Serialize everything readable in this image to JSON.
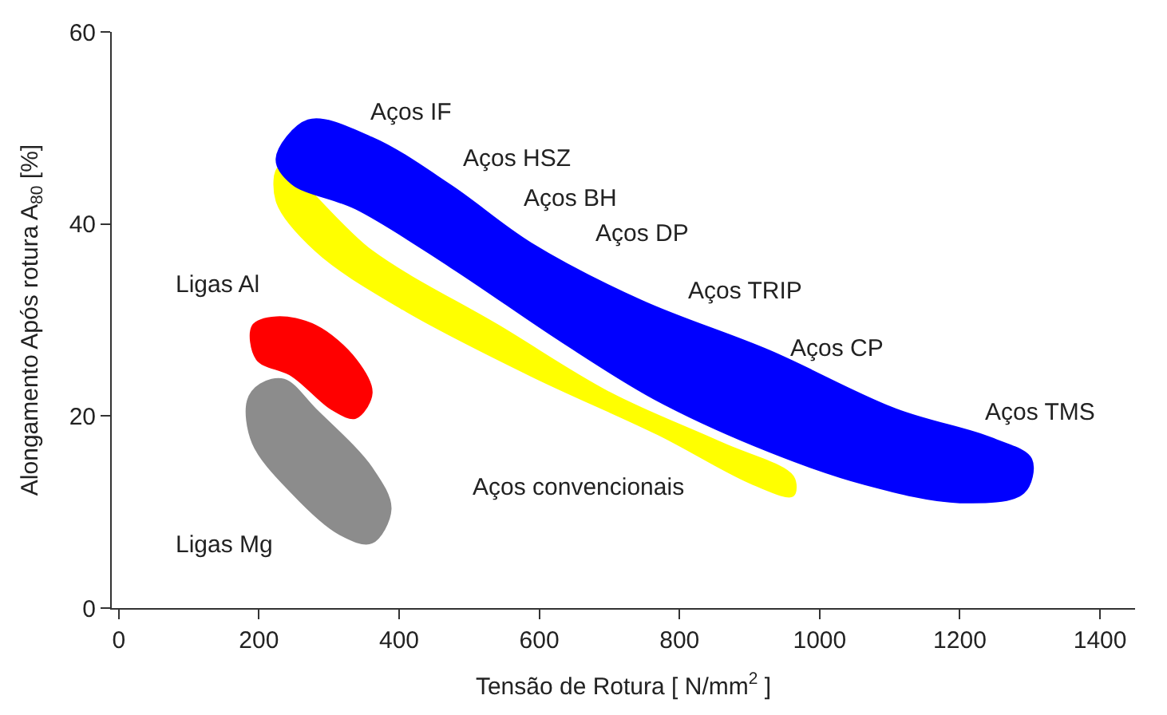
{
  "chart_data": {
    "type": "area",
    "xlabel": "Tensão de Rotura [ N/mm$^{2}$ ]",
    "ylabel": "Alongamento Após rotura A$_{80}$ [%]",
    "xlim": [
      -10,
      1450
    ],
    "ylim": [
      0,
      60
    ],
    "xticks": [
      0,
      200,
      400,
      600,
      800,
      1000,
      1200,
      1400
    ],
    "yticks": [
      0,
      20,
      40,
      60
    ],
    "series": [
      {
        "color": "#ffff00",
        "x": [
          229,
          225,
          281,
          406,
          588,
          769,
          905,
          962,
          962,
          860,
          701,
          542,
          361,
          229
        ],
        "values": [
          45.9,
          42.4,
          37.2,
          31.1,
          24.2,
          18.1,
          12.9,
          11.7,
          13.7,
          17.2,
          22.4,
          29.4,
          37.2,
          45.9
        ]
      },
      {
        "color": "#0000ff",
        "x": [
          225,
          270,
          361,
          474,
          588,
          746,
          928,
          1109,
          1245,
          1302,
          1291,
          1200,
          1064,
          928,
          769,
          633,
          474,
          338,
          247,
          225
        ],
        "values": [
          46.8,
          50.8,
          49,
          44,
          38,
          32,
          26.8,
          20.7,
          17.7,
          15.5,
          12,
          11,
          12.9,
          16.3,
          21.6,
          27.7,
          35.5,
          41.6,
          44.2,
          46.8
        ]
      },
      {
        "color": "#ff0000",
        "x": [
          191,
          225,
          281,
          338,
          361,
          338,
          304,
          247,
          197,
          191
        ],
        "values": [
          29.4,
          30.3,
          29.4,
          25.9,
          22.4,
          19.8,
          20.7,
          24.2,
          25.9,
          29.4
        ]
      },
      {
        "color": "#8c8c8c",
        "x": [
          202,
          236,
          281,
          361,
          388,
          361,
          315,
          247,
          191,
          184,
          202
        ],
        "values": [
          23.3,
          23.8,
          20.7,
          14.6,
          10.3,
          6.8,
          7.7,
          12,
          17.2,
          21.6,
          23.3
        ]
      }
    ],
    "annotations": [
      "Aços IF",
      "Aços HSZ",
      "Aços BH",
      "Aços DP",
      "Aços TRIP",
      "Aços CP",
      "Aços TMS",
      "Ligas Al",
      "Ligas Mg",
      "Aços convencionais"
    ]
  }
}
